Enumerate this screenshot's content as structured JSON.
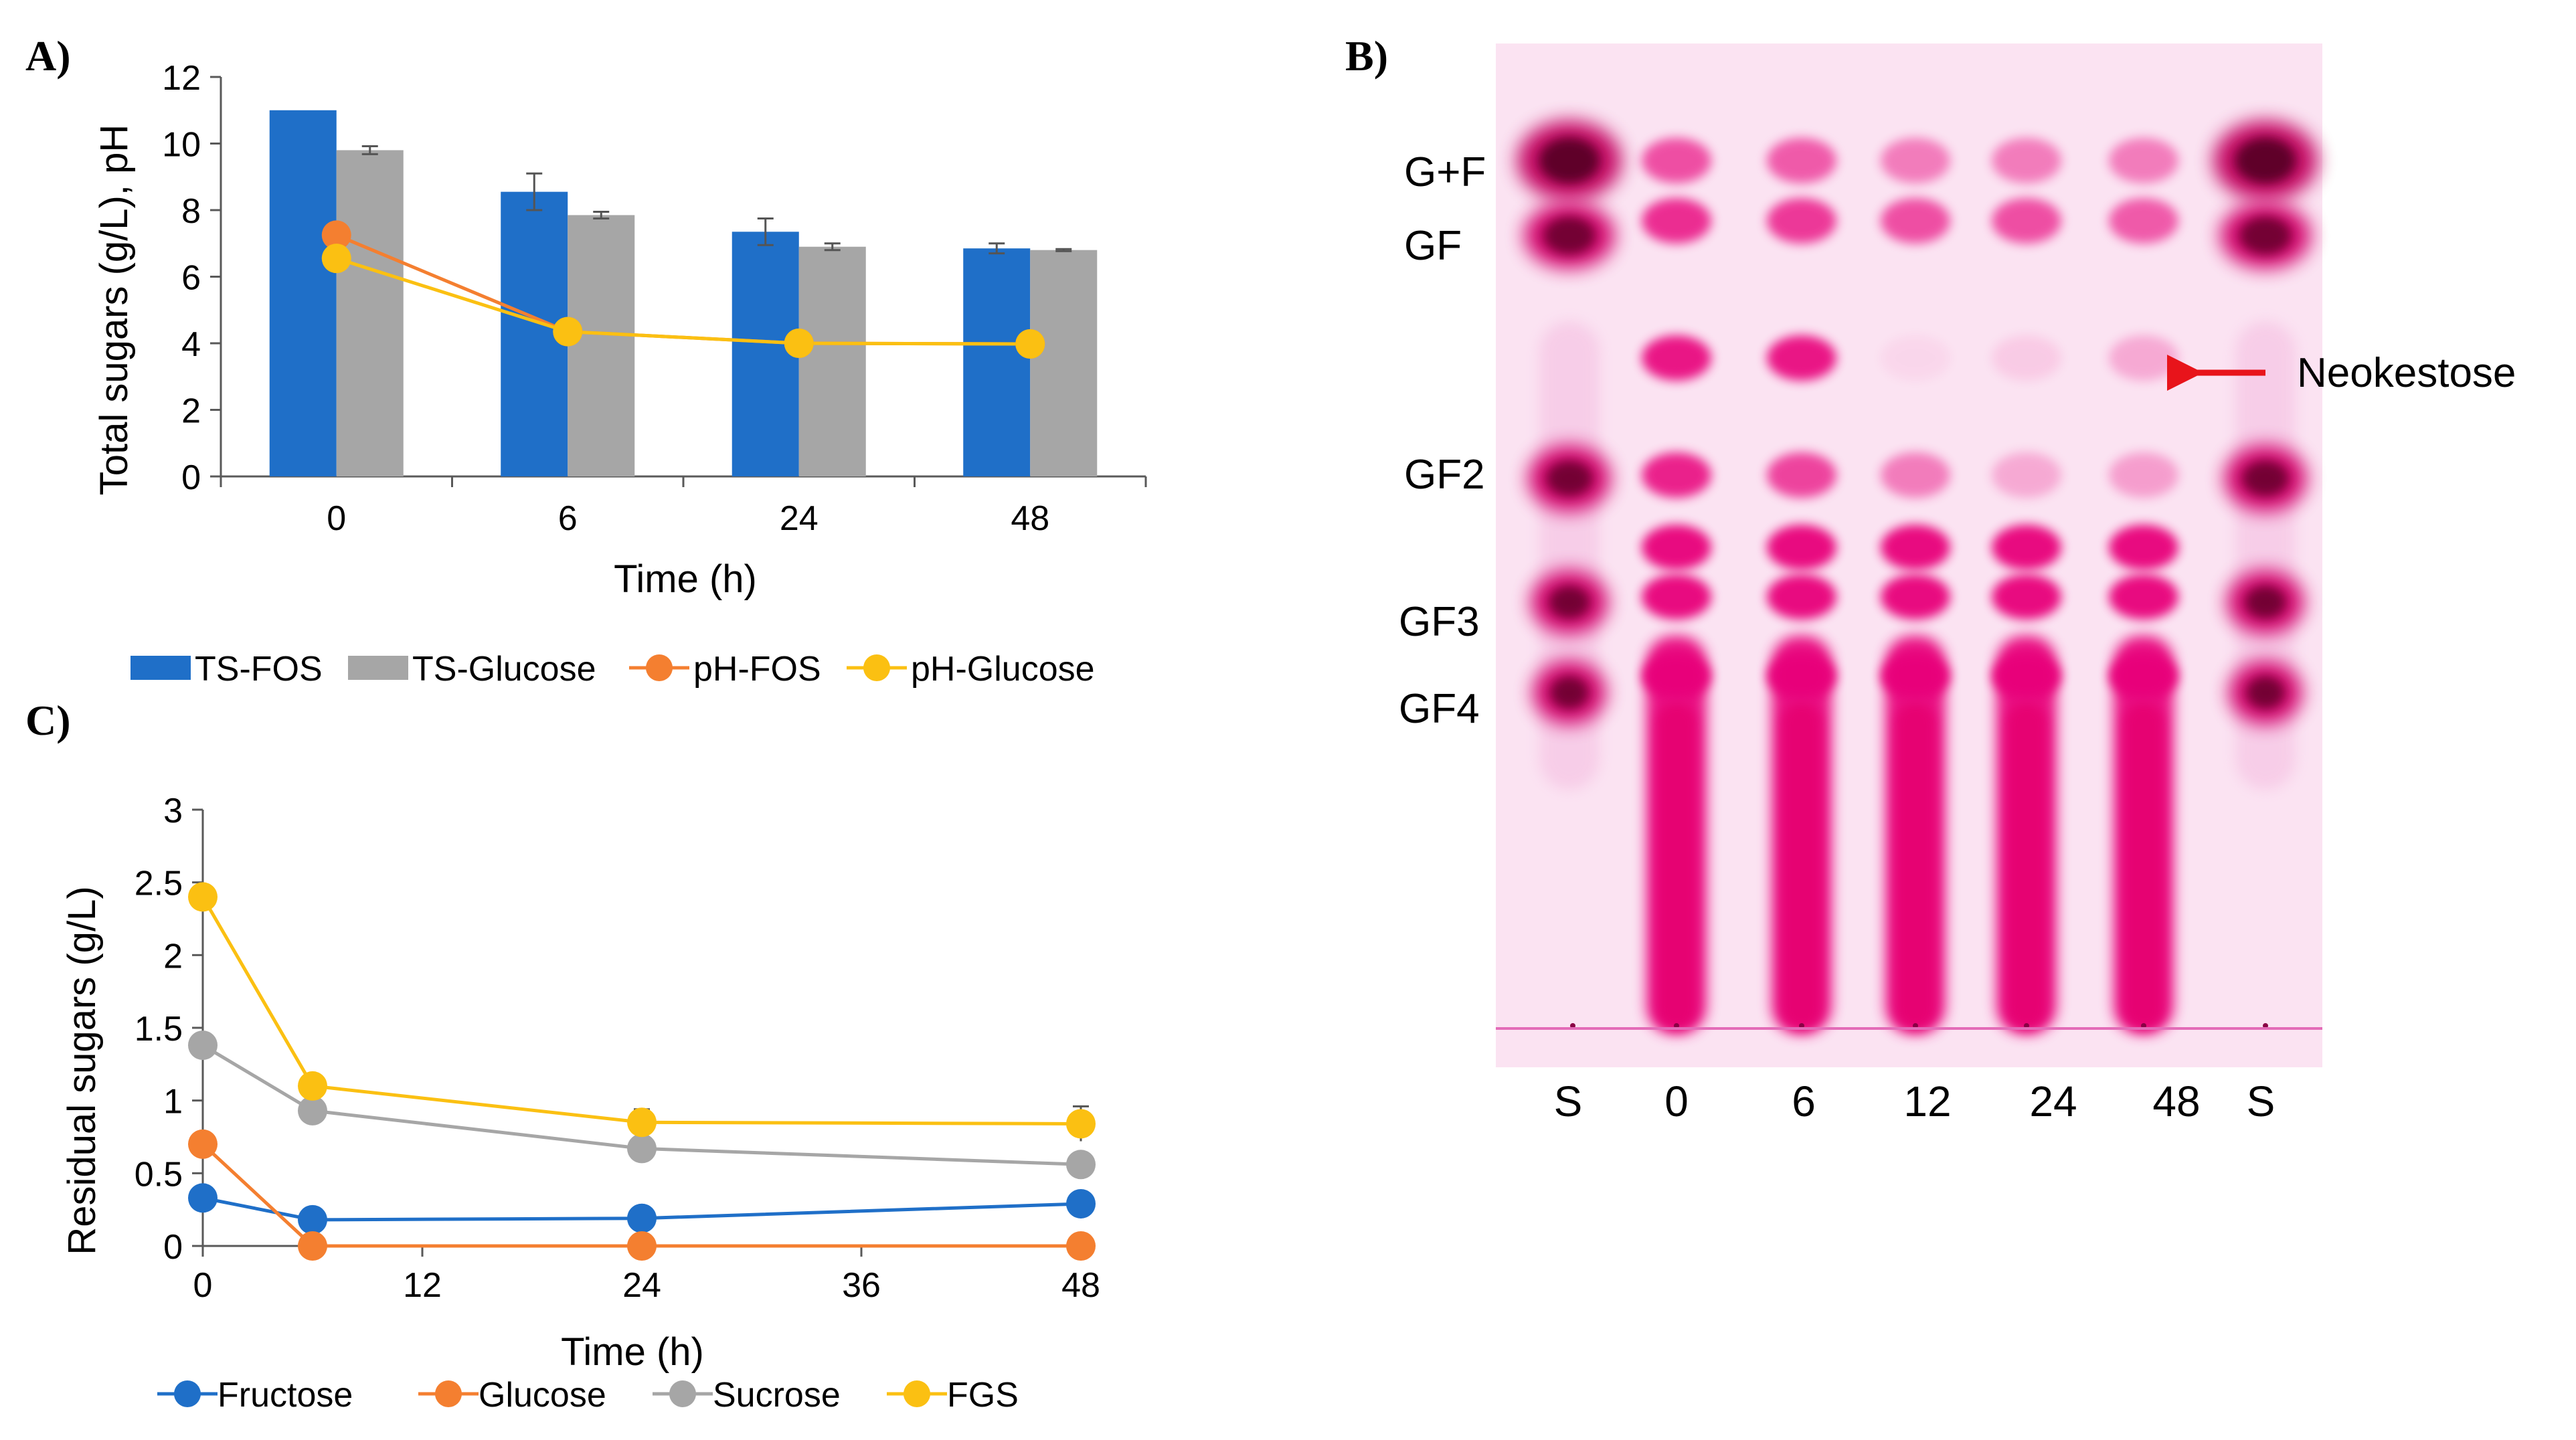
{
  "figure": {
    "panel_labels": [
      "A)",
      "B)",
      "C)"
    ]
  },
  "chart_data": [
    {
      "panel": "A)",
      "type": "bar",
      "title": "",
      "xlabel": "Time (h)",
      "ylabel": "Total sugars (g/L), pH",
      "categories": [
        "0",
        "6",
        "24",
        "48"
      ],
      "ylim": [
        0,
        12
      ],
      "yticks": [
        "0",
        "2",
        "4",
        "6",
        "8",
        "10",
        "12"
      ],
      "series": [
        {
          "name": "TS-FOS",
          "kind": "bar",
          "color": "#1f6fc8",
          "values": [
            11.0,
            8.55,
            7.35,
            6.85
          ],
          "errors": [
            0.0,
            0.55,
            0.4,
            0.15
          ]
        },
        {
          "name": "TS-Glucose",
          "kind": "bar",
          "color": "#a6a6a6",
          "values": [
            9.8,
            7.85,
            6.9,
            6.8
          ],
          "errors": [
            0.12,
            0.1,
            0.1,
            0.03
          ]
        },
        {
          "name": "pH-FOS",
          "kind": "line",
          "color": "#f47f30",
          "values": [
            7.25,
            4.35,
            4.0,
            3.98
          ]
        },
        {
          "name": "pH-Glucose",
          "kind": "line",
          "color": "#fbc012",
          "values": [
            6.55,
            4.35,
            4.0,
            3.98
          ]
        }
      ],
      "legend": "bottom"
    },
    {
      "panel": "B)",
      "type": "other",
      "description_labels": {
        "bands": [
          "G+F",
          "GF",
          "GF2",
          "GF3",
          "GF4"
        ],
        "lanes": [
          "S",
          "0",
          "6",
          "12",
          "24",
          "48",
          "S"
        ],
        "annotation": "Neokestose",
        "arrow_color": "#e8141b",
        "spot_color": "#e8007a"
      }
    },
    {
      "panel": "C)",
      "type": "line",
      "title": "",
      "xlabel": "Time (h)",
      "ylabel": "Residual sugars (g/L)",
      "x": [
        0,
        6,
        24,
        48
      ],
      "xlim": [
        0,
        48
      ],
      "xticks": [
        "0",
        "12",
        "24",
        "36",
        "48"
      ],
      "ylim": [
        0,
        3
      ],
      "yticks": [
        "0",
        "0.5",
        "1",
        "1.5",
        "2",
        "2.5",
        "3"
      ],
      "series": [
        {
          "name": "Fructose",
          "color": "#1f6fc8",
          "values": [
            0.33,
            0.18,
            0.19,
            0.29
          ],
          "errors": [
            0,
            0,
            0,
            0
          ]
        },
        {
          "name": "Glucose",
          "color": "#f47f30",
          "values": [
            0.7,
            0.0,
            0.0,
            0.0
          ],
          "errors": [
            0,
            0,
            0,
            0
          ]
        },
        {
          "name": "Sucrose",
          "color": "#a6a6a6",
          "values": [
            1.38,
            0.93,
            0.67,
            0.56
          ],
          "errors": [
            0,
            0,
            0,
            0
          ]
        },
        {
          "name": "FGS",
          "color": "#fbc012",
          "values": [
            2.4,
            1.1,
            0.85,
            0.84
          ],
          "errors": [
            0,
            0.03,
            0.09,
            0.12
          ]
        }
      ],
      "legend": "bottom"
    }
  ]
}
